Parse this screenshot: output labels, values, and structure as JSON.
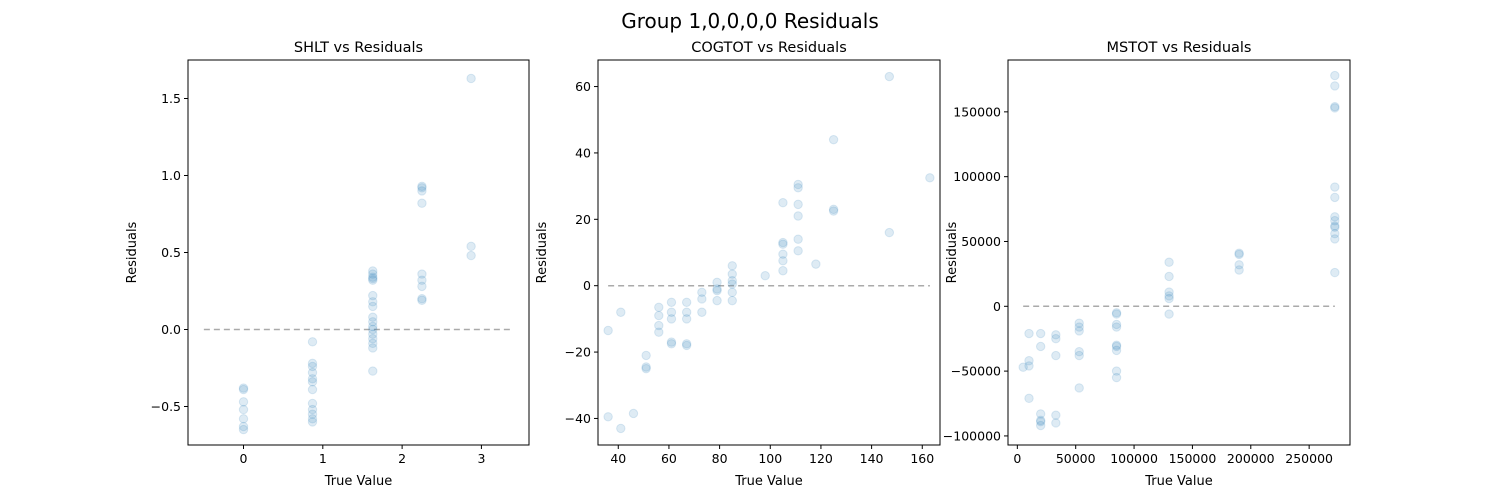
{
  "figure": {
    "suptitle": "Group 1,0,0,0,0 Residuals"
  },
  "chart_data": [
    {
      "type": "scatter",
      "title": "SHLT vs Residuals",
      "xlabel": "True Value",
      "ylabel": "Residuals",
      "xlim": [
        -0.7,
        3.6
      ],
      "ylim": [
        -0.75,
        1.75
      ],
      "xticks": [
        0,
        1,
        2,
        3
      ],
      "xtick_labels": [
        "0",
        "1",
        "2",
        "3"
      ],
      "yticks": [
        -0.5,
        0.0,
        0.5,
        1.0,
        1.5
      ],
      "ytick_labels": [
        "−0.5",
        "0.0",
        "0.5",
        "1.0",
        "1.5"
      ],
      "reference_line": {
        "y": 0,
        "xrange": [
          -0.5,
          3.4
        ],
        "style": "dashed",
        "color": "#aaaaaa"
      },
      "marker_color": "#1f77b4",
      "marker_alpha": 0.15,
      "points": [
        [
          0,
          -0.38
        ],
        [
          0,
          -0.39
        ],
        [
          0,
          -0.47
        ],
        [
          0,
          -0.52
        ],
        [
          0,
          -0.58
        ],
        [
          0,
          -0.63
        ],
        [
          0,
          -0.65
        ],
        [
          0.87,
          -0.08
        ],
        [
          0.87,
          -0.22
        ],
        [
          0.87,
          -0.24
        ],
        [
          0.87,
          -0.28
        ],
        [
          0.87,
          -0.32
        ],
        [
          0.87,
          -0.34
        ],
        [
          0.87,
          -0.39
        ],
        [
          0.87,
          -0.48
        ],
        [
          0.87,
          -0.52
        ],
        [
          0.87,
          -0.55
        ],
        [
          0.87,
          -0.58
        ],
        [
          0.87,
          -0.6
        ],
        [
          1.63,
          0.38
        ],
        [
          1.63,
          0.36
        ],
        [
          1.63,
          0.34
        ],
        [
          1.63,
          0.33
        ],
        [
          1.63,
          0.32
        ],
        [
          1.63,
          0.22
        ],
        [
          1.63,
          0.18
        ],
        [
          1.63,
          0.15
        ],
        [
          1.63,
          0.08
        ],
        [
          1.63,
          0.05
        ],
        [
          1.63,
          0.02
        ],
        [
          1.63,
          0.0
        ],
        [
          1.63,
          -0.03
        ],
        [
          1.63,
          -0.06
        ],
        [
          1.63,
          -0.09
        ],
        [
          1.63,
          -0.12
        ],
        [
          1.63,
          -0.27
        ],
        [
          2.25,
          0.93
        ],
        [
          2.25,
          0.92
        ],
        [
          2.25,
          0.9
        ],
        [
          2.25,
          0.82
        ],
        [
          2.25,
          0.36
        ],
        [
          2.25,
          0.32
        ],
        [
          2.25,
          0.28
        ],
        [
          2.25,
          0.2
        ],
        [
          2.25,
          0.19
        ],
        [
          2.87,
          1.63
        ],
        [
          2.87,
          0.54
        ],
        [
          2.87,
          0.48
        ]
      ]
    },
    {
      "type": "scatter",
      "title": "COGTOT vs Residuals",
      "xlabel": "True Value",
      "ylabel": "Residuals",
      "xlim": [
        32,
        167
      ],
      "ylim": [
        -48,
        68
      ],
      "xticks": [
        40,
        60,
        80,
        100,
        120,
        140,
        160
      ],
      "xtick_labels": [
        "40",
        "60",
        "80",
        "100",
        "120",
        "140",
        "160"
      ],
      "yticks": [
        -40,
        -20,
        0,
        20,
        40,
        60
      ],
      "ytick_labels": [
        "−40",
        "−20",
        "0",
        "20",
        "40",
        "60"
      ],
      "reference_line": {
        "y": 0,
        "xrange": [
          36,
          163
        ],
        "style": "dashed",
        "color": "#aaaaaa"
      },
      "marker_color": "#1f77b4",
      "marker_alpha": 0.15,
      "points": [
        [
          36,
          -13.5
        ],
        [
          36,
          -39.5
        ],
        [
          41,
          -8
        ],
        [
          41,
          -43
        ],
        [
          46,
          -38.5
        ],
        [
          51,
          -21
        ],
        [
          51,
          -24.5
        ],
        [
          51,
          -25
        ],
        [
          56,
          -6.5
        ],
        [
          56,
          -9
        ],
        [
          56,
          -12
        ],
        [
          56,
          -14
        ],
        [
          61,
          -5
        ],
        [
          61,
          -8
        ],
        [
          61,
          -10
        ],
        [
          61,
          -17
        ],
        [
          61,
          -17.5
        ],
        [
          67,
          -5
        ],
        [
          67,
          -8
        ],
        [
          67,
          -10
        ],
        [
          67,
          -17.5
        ],
        [
          67,
          -18
        ],
        [
          73,
          -2
        ],
        [
          73,
          -4
        ],
        [
          73,
          -8
        ],
        [
          79,
          1
        ],
        [
          79,
          -1
        ],
        [
          79,
          -1.5
        ],
        [
          79,
          -4.5
        ],
        [
          85,
          6
        ],
        [
          85,
          3.5
        ],
        [
          85,
          1.5
        ],
        [
          85,
          0.5
        ],
        [
          85,
          -2
        ],
        [
          85,
          -4.5
        ],
        [
          98,
          3
        ],
        [
          105,
          25
        ],
        [
          105,
          13
        ],
        [
          105,
          12.5
        ],
        [
          105,
          9.5
        ],
        [
          105,
          7.5
        ],
        [
          105,
          4.5
        ],
        [
          111,
          30.5
        ],
        [
          111,
          29.5
        ],
        [
          111,
          24.5
        ],
        [
          111,
          21
        ],
        [
          111,
          14
        ],
        [
          111,
          10.5
        ],
        [
          118,
          6.5
        ],
        [
          125,
          44
        ],
        [
          125,
          23
        ],
        [
          125,
          22.5
        ],
        [
          147,
          63
        ],
        [
          147,
          16
        ],
        [
          163,
          32.5
        ]
      ]
    },
    {
      "type": "scatter",
      "title": "MSTOT vs Residuals",
      "xlabel": "True Value",
      "ylabel": "Residuals",
      "xlim": [
        -8000,
        285000
      ],
      "ylim": [
        -107000,
        190000
      ],
      "xticks": [
        0,
        50000,
        100000,
        150000,
        200000,
        250000
      ],
      "xtick_labels": [
        "0",
        "50000",
        "100000",
        "150000",
        "200000",
        "250000"
      ],
      "yticks": [
        -100000,
        -50000,
        0,
        50000,
        100000,
        150000
      ],
      "ytick_labels": [
        "−100000",
        "−50000",
        "0",
        "50000",
        "100000",
        "150000"
      ],
      "reference_line": {
        "y": 0,
        "xrange": [
          5000,
          272000
        ],
        "style": "dashed",
        "color": "#aaaaaa"
      },
      "marker_color": "#1f77b4",
      "marker_alpha": 0.15,
      "points": [
        [
          5000,
          -47000
        ],
        [
          10000,
          -46000
        ],
        [
          10000,
          -42000
        ],
        [
          10000,
          -21000
        ],
        [
          10000,
          -71000
        ],
        [
          20000,
          -21000
        ],
        [
          20000,
          -31000
        ],
        [
          20000,
          -83000
        ],
        [
          20000,
          -88000
        ],
        [
          20000,
          -89000
        ],
        [
          20000,
          -92000
        ],
        [
          33000,
          -22000
        ],
        [
          33000,
          -25000
        ],
        [
          33000,
          -38000
        ],
        [
          33000,
          -84000
        ],
        [
          33000,
          -90000
        ],
        [
          53000,
          -13000
        ],
        [
          53000,
          -16000
        ],
        [
          53000,
          -19000
        ],
        [
          53000,
          -35000
        ],
        [
          53000,
          -38000
        ],
        [
          53000,
          -63000
        ],
        [
          85000,
          -5000
        ],
        [
          85000,
          -6000
        ],
        [
          85000,
          -14000
        ],
        [
          85000,
          -16000
        ],
        [
          85000,
          -30000
        ],
        [
          85000,
          -31000
        ],
        [
          85000,
          -34000
        ],
        [
          85000,
          -50000
        ],
        [
          85000,
          -55000
        ],
        [
          130000,
          34000
        ],
        [
          130000,
          23000
        ],
        [
          130000,
          11000
        ],
        [
          130000,
          8000
        ],
        [
          130000,
          6000
        ],
        [
          130000,
          -6000
        ],
        [
          190000,
          41000
        ],
        [
          190000,
          40000
        ],
        [
          190000,
          32000
        ],
        [
          190000,
          28000
        ],
        [
          272000,
          178000
        ],
        [
          272000,
          170000
        ],
        [
          272000,
          154000
        ],
        [
          272000,
          153000
        ],
        [
          272000,
          92000
        ],
        [
          272000,
          84000
        ],
        [
          272000,
          69000
        ],
        [
          272000,
          66000
        ],
        [
          272000,
          62000
        ],
        [
          272000,
          61000
        ],
        [
          272000,
          56000
        ],
        [
          272000,
          52000
        ],
        [
          272000,
          26000
        ]
      ]
    }
  ]
}
